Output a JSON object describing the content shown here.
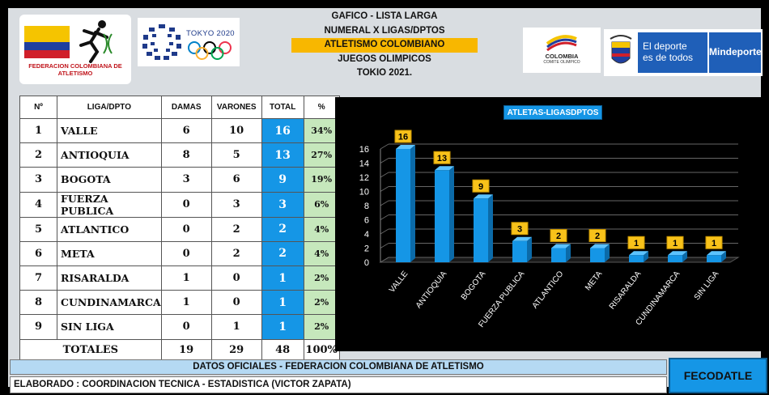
{
  "header": {
    "title_lines": [
      "GAFICO - LISTA LARGA",
      "NUMERAL X LIGAS/DPTOS",
      "ATLETISMO COLOMBIANO",
      "JUEGOS OLIMPICOS",
      "TOKIO 2021."
    ],
    "federation_name": "FEDERACION COLOMBIANA DE ATLETISMO",
    "tokyo_label": "TOKYO 2020",
    "coc_name": "COLOMBIA",
    "coc_sub": "COMITE OLIMPICO",
    "ministry_slogan_1": "El deporte",
    "ministry_slogan_2": "es de todos",
    "ministry_name": "Mindeporte"
  },
  "table": {
    "columns": [
      "Nº",
      "LIGA/DPTO",
      "DAMAS",
      "VARONES",
      "TOTAL",
      "%"
    ],
    "rows": [
      {
        "n": "1",
        "liga": "VALLE",
        "damas": "6",
        "varones": "10",
        "total": "16",
        "pct": "34%"
      },
      {
        "n": "2",
        "liga": "ANTIOQUIA",
        "damas": "8",
        "varones": "5",
        "total": "13",
        "pct": "27%"
      },
      {
        "n": "3",
        "liga": "BOGOTA",
        "damas": "3",
        "varones": "6",
        "total": "9",
        "pct": "19%"
      },
      {
        "n": "4",
        "liga": "FUERZA PUBLICA",
        "damas": "0",
        "varones": "3",
        "total": "3",
        "pct": "6%"
      },
      {
        "n": "5",
        "liga": "ATLANTICO",
        "damas": "0",
        "varones": "2",
        "total": "2",
        "pct": "4%"
      },
      {
        "n": "6",
        "liga": "META",
        "damas": "0",
        "varones": "2",
        "total": "2",
        "pct": "4%"
      },
      {
        "n": "7",
        "liga": "RISARALDA",
        "damas": "1",
        "varones": "0",
        "total": "1",
        "pct": "2%"
      },
      {
        "n": "8",
        "liga": "CUNDINAMARCA",
        "damas": "1",
        "varones": "0",
        "total": "1",
        "pct": "2%"
      },
      {
        "n": "9",
        "liga": "SIN LIGA",
        "damas": "0",
        "varones": "1",
        "total": "1",
        "pct": "2%"
      }
    ],
    "totals": {
      "label": "TOTALES",
      "damas": "19",
      "varones": "29",
      "total": "48",
      "pct": "100%"
    }
  },
  "chart_data": {
    "type": "bar",
    "title": "ATLETAS-LIGASDPTOS",
    "categories": [
      "VALLE",
      "ANTIOQUIA",
      "BOGOTA",
      "FUERZA PUBLICA",
      "ATLANTICO",
      "META",
      "RISARALDA",
      "CUNDINAMARCA",
      "SIN LIGA"
    ],
    "values": [
      16,
      13,
      9,
      3,
      2,
      2,
      1,
      1,
      1
    ],
    "ylim": [
      0,
      16
    ],
    "yticks": [
      0,
      2,
      4,
      6,
      8,
      10,
      12,
      14,
      16
    ],
    "xlabel": "",
    "ylabel": "",
    "bar_color": "#1596e6",
    "label_color": "#f8c21a"
  },
  "footer": {
    "source": "DATOS OFICIALES - FEDERACION COLOMBIANA DE ATLETISMO",
    "credits": "ELABORADO : COORDINACION TECNICA - ESTADISTICA (VICTOR ZAPATA)",
    "brand": "FECODATLE"
  }
}
